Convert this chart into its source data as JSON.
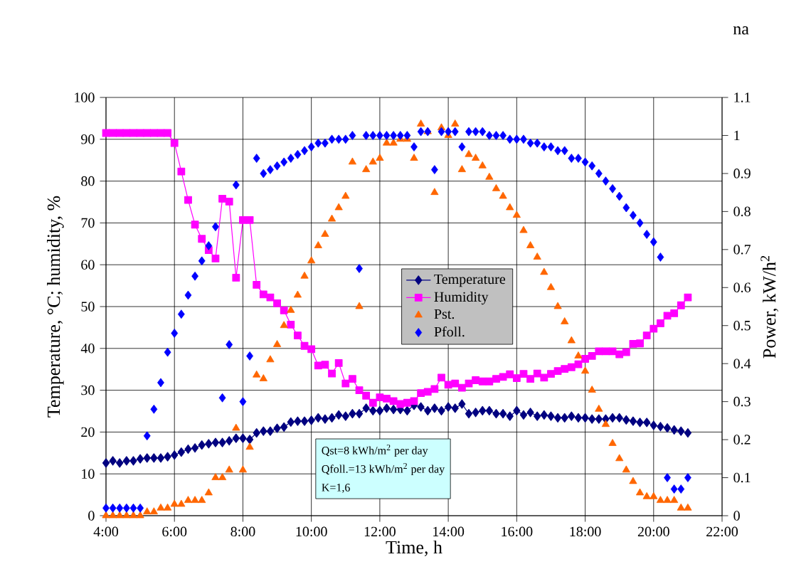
{
  "chart_data": {
    "type": "line",
    "title": "na",
    "xlabel": "Time, h",
    "ylabel": "Temperature, °C; humidity, %",
    "y2label": "Power, kW/h$^{2}$",
    "annotations": [
      "Qst=8 kWh/m$^{2}$  per day",
      "Qfoll.=13 kWh/m$^{2}$ per day",
      "K=1,6"
    ],
    "x": [
      4.0,
      4.2,
      4.4,
      4.6,
      4.8,
      5.0,
      5.2,
      5.4,
      5.6,
      5.8,
      6.0,
      6.2,
      6.4,
      6.6,
      6.8,
      7.0,
      7.2,
      7.4,
      7.6,
      7.8,
      8.0,
      8.2,
      8.4,
      8.6,
      8.8,
      9.0,
      9.2,
      9.4,
      9.6,
      9.8,
      10.0,
      10.2,
      10.4,
      10.6,
      10.8,
      11.0,
      11.2,
      11.4,
      11.6,
      11.8,
      12.0,
      12.2,
      12.4,
      12.6,
      12.8,
      13.0,
      13.2,
      13.4,
      13.6,
      13.8,
      14.0,
      14.2,
      14.4,
      14.6,
      14.8,
      15.0,
      15.2,
      15.4,
      15.6,
      15.8,
      16.0,
      16.2,
      16.4,
      16.6,
      16.8,
      17.0,
      17.2,
      17.4,
      17.6,
      17.8,
      18.0,
      18.2,
      18.4,
      18.6,
      18.8,
      19.0,
      19.2,
      19.4,
      19.6,
      19.8,
      20.0,
      20.2,
      20.4,
      20.6,
      20.8,
      21.0
    ],
    "series": [
      {
        "name": "Temperature",
        "marker": "diamond",
        "line_style": "solid",
        "color": "#000080",
        "values": [
          12.6,
          13.1,
          12.6,
          13.1,
          13.1,
          13.6,
          13.8,
          13.8,
          13.8,
          14.1,
          14.5,
          15.2,
          15.9,
          16.2,
          16.9,
          17.2,
          17.5,
          17.5,
          17.9,
          18.5,
          18.5,
          18.2,
          19.8,
          20.2,
          20.2,
          20.9,
          21.2,
          22.4,
          22.6,
          22.6,
          22.8,
          23.4,
          23.1,
          23.4,
          24.1,
          23.8,
          24.4,
          24.4,
          25.7,
          25.1,
          25.1,
          25.7,
          25.4,
          25.4,
          25.1,
          26.4,
          26.0,
          25.1,
          25.7,
          25.1,
          26.0,
          25.7,
          26.7,
          24.4,
          24.7,
          25.1,
          25.1,
          24.4,
          24.4,
          23.8,
          25.1,
          24.1,
          24.7,
          23.8,
          24.1,
          23.8,
          23.4,
          23.4,
          23.8,
          23.4,
          23.4,
          23.1,
          23.1,
          23.1,
          23.4,
          23.4,
          22.9,
          22.6,
          22.3,
          22.3,
          21.6,
          21.3,
          21.0,
          20.5,
          20.2,
          19.8
        ]
      },
      {
        "name": "Humidity",
        "marker": "square",
        "line_style": "solid",
        "color": "#ff00ff",
        "values": [
          91.5,
          91.5,
          91.5,
          91.5,
          91.5,
          91.5,
          91.5,
          91.5,
          91.5,
          91.5,
          89.1,
          82.3,
          75.5,
          69.6,
          66.2,
          63.5,
          61.5,
          75.8,
          75.1,
          56.9,
          70.7,
          70.7,
          55.2,
          52.9,
          52.2,
          50.8,
          49.1,
          45.7,
          43.1,
          40.6,
          39.8,
          35.9,
          36.1,
          34.0,
          36.5,
          31.6,
          32.7,
          30.0,
          28.7,
          27.0,
          28.3,
          28.0,
          27.4,
          26.7,
          27.0,
          27.4,
          29.3,
          29.6,
          30.3,
          33.0,
          31.3,
          31.6,
          30.6,
          31.6,
          32.4,
          32.1,
          32.1,
          32.7,
          33.2,
          33.8,
          32.9,
          33.9,
          32.7,
          34.0,
          33.0,
          33.9,
          34.6,
          35.1,
          35.5,
          36.2,
          37.5,
          38.2,
          39.3,
          39.3,
          39.3,
          38.6,
          39.1,
          41.1,
          41.2,
          43.1,
          44.7,
          46.0,
          47.8,
          48.4,
          50.3,
          52.2
        ]
      },
      {
        "name": "Pst.",
        "type": "scatter",
        "marker": "triangle",
        "axis": "y2",
        "color": "#ff6600",
        "values": [
          0,
          0,
          0,
          0,
          0,
          0,
          0.01,
          0.01,
          0.02,
          0.02,
          0.03,
          0.03,
          0.04,
          0.04,
          0.04,
          0.06,
          0.1,
          0.1,
          0.12,
          0.23,
          0.12,
          0.18,
          0.37,
          0.36,
          0.41,
          0.45,
          0.5,
          0.54,
          0.58,
          0.63,
          0.67,
          0.71,
          0.74,
          0.78,
          0.81,
          0.84,
          0.93,
          0.55,
          0.91,
          0.93,
          0.94,
          0.98,
          0.98,
          0.99,
          0.99,
          0.94,
          1.03,
          1.01,
          0.85,
          1.02,
          1.0,
          1.03,
          0.91,
          0.95,
          0.94,
          0.92,
          0.89,
          0.86,
          0.84,
          0.81,
          0.79,
          0.75,
          0.71,
          0.68,
          0.64,
          0.6,
          0.55,
          0.51,
          0.46,
          0.42,
          0.38,
          0.33,
          0.28,
          0.24,
          0.19,
          0.15,
          0.12,
          0.09,
          0.06,
          0.05,
          0.05,
          0.04,
          0.04,
          0.04,
          0.02,
          0.02
        ]
      },
      {
        "name": "Pfoll.",
        "type": "scatter",
        "marker": "diamond",
        "axis": "y2",
        "color": "#0000ff",
        "values": [
          0.02,
          0.02,
          0.02,
          0.02,
          0.02,
          0.02,
          0.21,
          0.28,
          0.35,
          0.43,
          0.48,
          0.53,
          0.58,
          0.63,
          0.67,
          0.71,
          0.76,
          0.31,
          0.45,
          0.87,
          0.3,
          0.42,
          0.94,
          0.9,
          0.91,
          0.92,
          0.93,
          0.94,
          0.95,
          0.96,
          0.97,
          0.98,
          0.98,
          0.99,
          0.99,
          0.99,
          1.0,
          0.65,
          1.0,
          1.0,
          1.0,
          1.0,
          1.0,
          1.0,
          1.0,
          0.97,
          1.01,
          1.01,
          0.91,
          1.01,
          1.01,
          1.01,
          0.97,
          1.01,
          1.01,
          1.01,
          1.0,
          1.0,
          1.0,
          0.99,
          0.99,
          0.99,
          0.98,
          0.98,
          0.97,
          0.97,
          0.96,
          0.96,
          0.94,
          0.94,
          0.93,
          0.92,
          0.9,
          0.88,
          0.86,
          0.84,
          0.81,
          0.79,
          0.77,
          0.74,
          0.72,
          0.68,
          0.1,
          0.07,
          0.07,
          0.1
        ]
      }
    ],
    "xlim": [
      4,
      22
    ],
    "xticks": [
      {
        "value": 4,
        "label": "4:00"
      },
      {
        "value": 6,
        "label": "6:00"
      },
      {
        "value": 8,
        "label": "8:00"
      },
      {
        "value": 10,
        "label": "10:00"
      },
      {
        "value": 12,
        "label": "12:00"
      },
      {
        "value": 14,
        "label": "14:00"
      },
      {
        "value": 16,
        "label": "16:00"
      },
      {
        "value": 18,
        "label": "18:00"
      },
      {
        "value": 20,
        "label": "20:00"
      },
      {
        "value": 22,
        "label": "22:00"
      }
    ],
    "ylim": [
      0,
      100
    ],
    "yticks": [
      0,
      10,
      20,
      30,
      40,
      50,
      60,
      70,
      80,
      90,
      100
    ],
    "y2lim": [
      0,
      1.1
    ],
    "y2ticks": [
      0,
      0.1,
      0.2,
      0.3,
      0.4,
      0.5,
      0.6,
      0.7,
      0.8,
      0.9,
      1,
      1.1
    ],
    "grid": true,
    "legend": "center"
  }
}
